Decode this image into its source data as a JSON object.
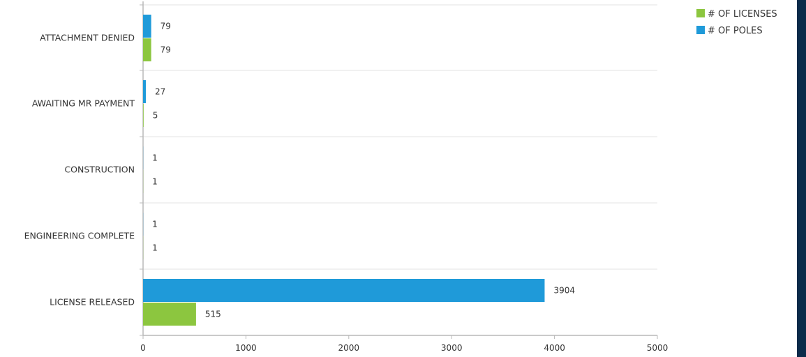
{
  "chart_data": {
    "type": "bar",
    "orientation": "horizontal",
    "categories": [
      "ATTACHMENT DENIED",
      "AWAITING MR PAYMENT",
      "CONSTRUCTION",
      "ENGINEERING COMPLETE",
      "LICENSE RELEASED"
    ],
    "series": [
      {
        "name": "# OF POLES",
        "color": "#1f9ad9",
        "values": [
          79,
          27,
          1,
          1,
          3904
        ]
      },
      {
        "name": "# OF LICENSES",
        "color": "#8cc63f",
        "values": [
          79,
          5,
          1,
          1,
          515
        ]
      }
    ],
    "legend_order": [
      "# OF LICENSES",
      "# OF POLES"
    ],
    "xlim": [
      0,
      5000
    ],
    "xticks": [
      "0",
      "1000",
      "2000",
      "3000",
      "4000",
      "5000"
    ],
    "grid": true,
    "legend_position": "top-right"
  },
  "colors": {
    "right_strip": "#0b2b4a",
    "grid": "#e3e3e3",
    "axis": "#b8b8b8"
  }
}
